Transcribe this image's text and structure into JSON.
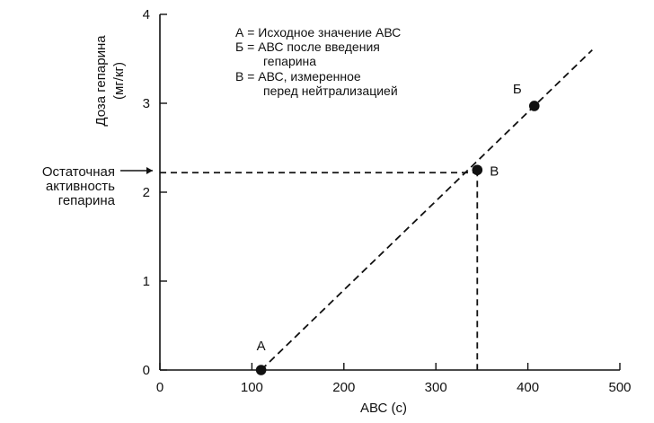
{
  "chart_data": {
    "type": "line",
    "xlabel": "АВС (с)",
    "ylabel_lines": [
      "Доза гепарина",
      "(мг/кг)"
    ],
    "xlim": [
      0,
      500
    ],
    "ylim": [
      0,
      4
    ],
    "x_ticks": [
      0,
      100,
      200,
      300,
      400,
      500
    ],
    "y_ticks": [
      0,
      1,
      2,
      3,
      4
    ],
    "x_tick_labels": [
      "0",
      "100",
      "200",
      "300",
      "400",
      "500"
    ],
    "y_tick_labels": [
      "0",
      "1",
      "2",
      "3",
      "4"
    ],
    "legend_lines": [
      "А = Исходное значение АВС",
      "Б = АВС после введения",
      "гепарина",
      "В = АВС, измеренное",
      "перед нейтрализацией"
    ],
    "annotation_lines": [
      "Остаточная",
      "активность",
      "гепарина"
    ],
    "dose_response_line": {
      "x": [
        110,
        470
      ],
      "y": [
        0,
        3.6
      ]
    },
    "points": [
      {
        "label": "А",
        "x": 110,
        "y": 0
      },
      {
        "label": "Б",
        "x": 407,
        "y": 2.97
      },
      {
        "label": "В",
        "x": 345,
        "y": 2.25
      }
    ],
    "guides": {
      "horizontal_y": 2.22,
      "vertical_x": 345
    },
    "grid": false
  }
}
